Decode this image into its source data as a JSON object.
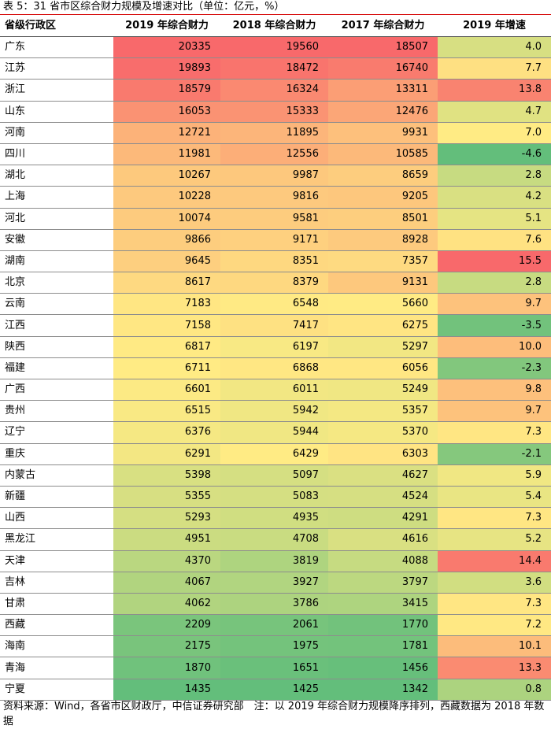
{
  "caption": "表 5：31 省市区综合财力规模及增速对比（单位：亿元，%）",
  "headers": [
    "省级行政区",
    "2019 年综合财力",
    "2018 年综合财力",
    "2017 年综合财力",
    "2019 年增速"
  ],
  "colors": {
    "red": "#f8696b",
    "yellow": "#ffeb84",
    "green": "#63be7b",
    "caption_rule": "#d40000"
  },
  "rows": [
    {
      "name": "广东",
      "v2019": "20335",
      "v2018": "19560",
      "v2017": "18507",
      "growth": "4.0"
    },
    {
      "name": "江苏",
      "v2019": "19893",
      "v2018": "18472",
      "v2017": "16740",
      "growth": "7.7"
    },
    {
      "name": "浙江",
      "v2019": "18579",
      "v2018": "16324",
      "v2017": "13311",
      "growth": "13.8"
    },
    {
      "name": "山东",
      "v2019": "16053",
      "v2018": "15333",
      "v2017": "12476",
      "growth": "4.7"
    },
    {
      "name": "河南",
      "v2019": "12721",
      "v2018": "11895",
      "v2017": "9931",
      "growth": "7.0"
    },
    {
      "name": "四川",
      "v2019": "11981",
      "v2018": "12556",
      "v2017": "10585",
      "growth": "-4.6"
    },
    {
      "name": "湖北",
      "v2019": "10267",
      "v2018": "9987",
      "v2017": "8659",
      "growth": "2.8"
    },
    {
      "name": "上海",
      "v2019": "10228",
      "v2018": "9816",
      "v2017": "9205",
      "growth": "4.2"
    },
    {
      "name": "河北",
      "v2019": "10074",
      "v2018": "9581",
      "v2017": "8501",
      "growth": "5.1"
    },
    {
      "name": "安徽",
      "v2019": "9866",
      "v2018": "9171",
      "v2017": "8928",
      "growth": "7.6"
    },
    {
      "name": "湖南",
      "v2019": "9645",
      "v2018": "8351",
      "v2017": "7357",
      "growth": "15.5"
    },
    {
      "name": "北京",
      "v2019": "8617",
      "v2018": "8379",
      "v2017": "9131",
      "growth": "2.8"
    },
    {
      "name": "云南",
      "v2019": "7183",
      "v2018": "6548",
      "v2017": "5660",
      "growth": "9.7"
    },
    {
      "name": "江西",
      "v2019": "7158",
      "v2018": "7417",
      "v2017": "6275",
      "growth": "-3.5"
    },
    {
      "name": "陕西",
      "v2019": "6817",
      "v2018": "6197",
      "v2017": "5297",
      "growth": "10.0"
    },
    {
      "name": "福建",
      "v2019": "6711",
      "v2018": "6868",
      "v2017": "6056",
      "growth": "-2.3"
    },
    {
      "name": "广西",
      "v2019": "6601",
      "v2018": "6011",
      "v2017": "5249",
      "growth": "9.8"
    },
    {
      "name": "贵州",
      "v2019": "6515",
      "v2018": "5942",
      "v2017": "5357",
      "growth": "9.7"
    },
    {
      "name": "辽宁",
      "v2019": "6376",
      "v2018": "5944",
      "v2017": "5370",
      "growth": "7.3"
    },
    {
      "name": "重庆",
      "v2019": "6291",
      "v2018": "6429",
      "v2017": "6303",
      "growth": "-2.1"
    },
    {
      "name": "内蒙古",
      "v2019": "5398",
      "v2018": "5097",
      "v2017": "4627",
      "growth": "5.9"
    },
    {
      "name": "新疆",
      "v2019": "5355",
      "v2018": "5083",
      "v2017": "4524",
      "growth": "5.4"
    },
    {
      "name": "山西",
      "v2019": "5293",
      "v2018": "4935",
      "v2017": "4291",
      "growth": "7.3"
    },
    {
      "name": "黑龙江",
      "v2019": "4951",
      "v2018": "4708",
      "v2017": "4616",
      "growth": "5.2"
    },
    {
      "name": "天津",
      "v2019": "4370",
      "v2018": "3819",
      "v2017": "4088",
      "growth": "14.4"
    },
    {
      "name": "吉林",
      "v2019": "4067",
      "v2018": "3927",
      "v2017": "3797",
      "growth": "3.6"
    },
    {
      "name": "甘肃",
      "v2019": "4062",
      "v2018": "3786",
      "v2017": "3415",
      "growth": "7.3"
    },
    {
      "name": "西藏",
      "v2019": "2209",
      "v2018": "2061",
      "v2017": "1770",
      "growth": "7.2"
    },
    {
      "name": "海南",
      "v2019": "2175",
      "v2018": "1975",
      "v2017": "1781",
      "growth": "10.1"
    },
    {
      "name": "青海",
      "v2019": "1870",
      "v2018": "1651",
      "v2017": "1456",
      "growth": "13.3"
    },
    {
      "name": "宁夏",
      "v2019": "1435",
      "v2018": "1425",
      "v2017": "1342",
      "growth": "0.8"
    }
  ],
  "footnote": "资料来源：Wind，各省市区财政厅，中信证券研究部　注：以 2019 年综合财力规模降序排列，西藏数据为 2018 年数据"
}
